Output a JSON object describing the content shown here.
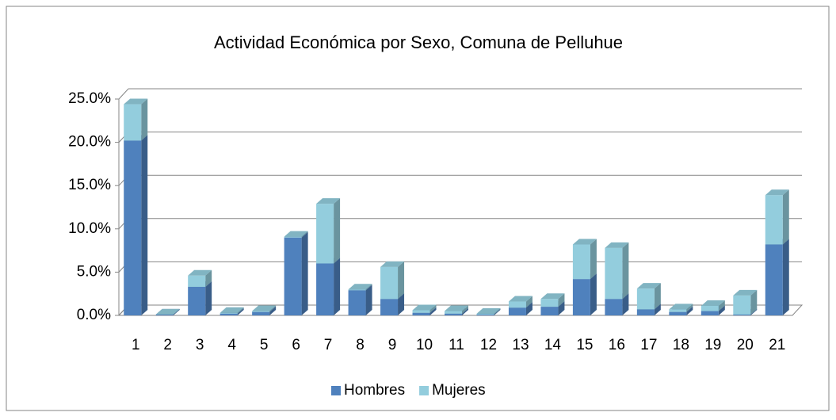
{
  "chart_data": {
    "type": "bar3d_stacked",
    "title": "Actividad Económica por Sexo, Comuna de Pelluhue",
    "categories": [
      "1",
      "2",
      "3",
      "4",
      "5",
      "6",
      "7",
      "8",
      "9",
      "10",
      "11",
      "12",
      "13",
      "14",
      "15",
      "16",
      "17",
      "18",
      "19",
      "20",
      "21"
    ],
    "series": [
      {
        "name": "Hombres",
        "color": "#4f81bd",
        "values": [
          20.2,
          0.1,
          3.3,
          0.2,
          0.4,
          9.0,
          6.0,
          2.9,
          1.9,
          0.3,
          0.2,
          0.1,
          0.9,
          1.0,
          4.2,
          1.9,
          0.7,
          0.4,
          0.5,
          0.1,
          8.2
        ]
      },
      {
        "name": "Mujeres",
        "color": "#93cddd",
        "values": [
          4.2,
          0.0,
          1.3,
          0.1,
          0.1,
          0.1,
          6.9,
          0.1,
          3.7,
          0.3,
          0.3,
          0.1,
          0.7,
          0.9,
          4.0,
          5.9,
          2.4,
          0.3,
          0.6,
          2.2,
          5.7
        ]
      }
    ],
    "ylim": [
      0,
      25
    ],
    "yticks": [
      {
        "value": 0,
        "label": "0.0%"
      },
      {
        "value": 5,
        "label": "5.0%"
      },
      {
        "value": 10,
        "label": "10.0%"
      },
      {
        "value": 15,
        "label": "15.0%"
      },
      {
        "value": 20,
        "label": "20.0%"
      },
      {
        "value": 25,
        "label": "25.0%"
      }
    ],
    "grid": true,
    "legend": "bottom"
  }
}
